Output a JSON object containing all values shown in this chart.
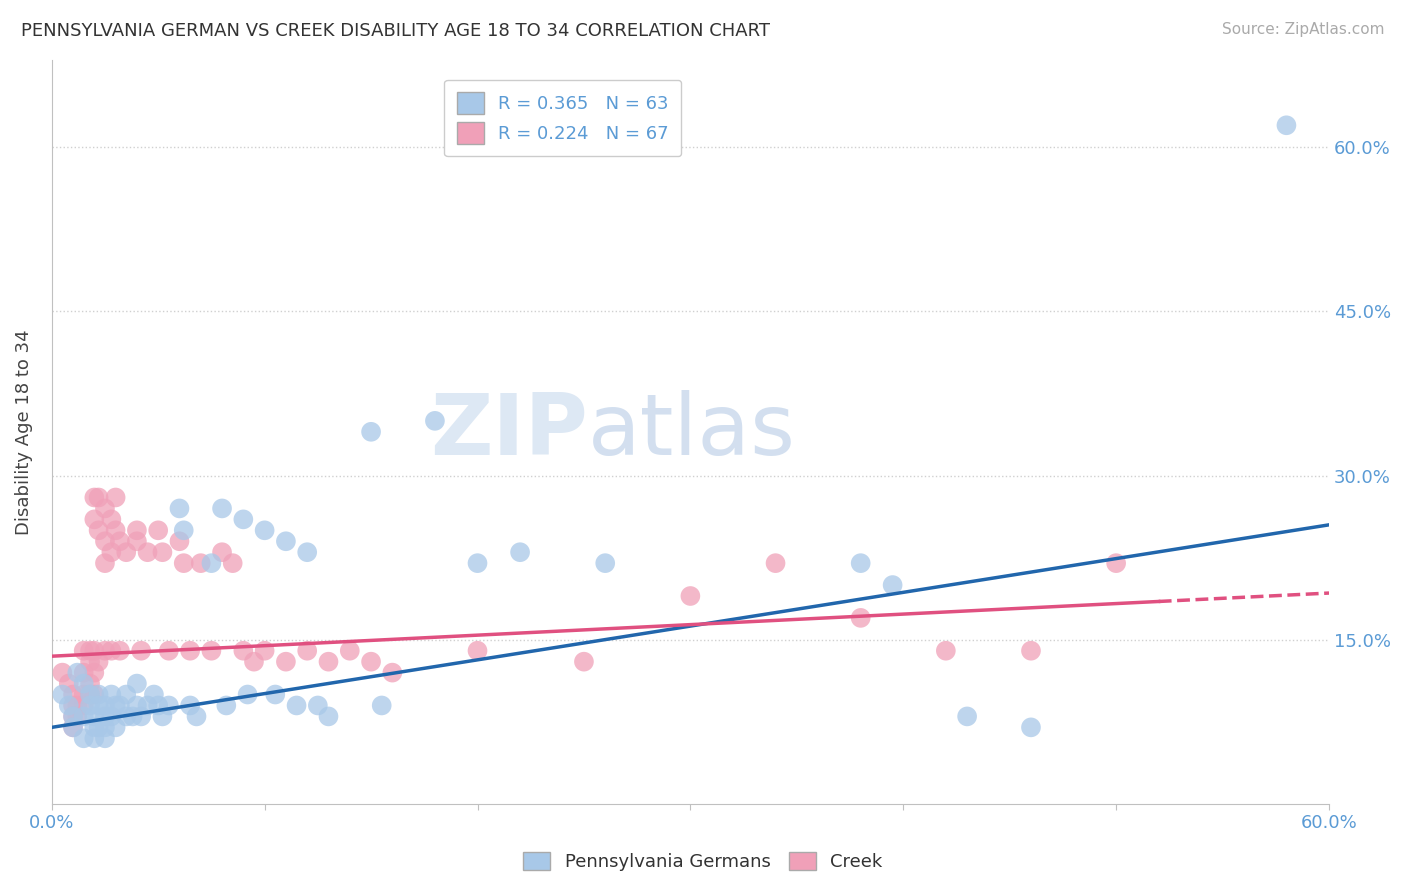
{
  "title": "PENNSYLVANIA GERMAN VS CREEK DISABILITY AGE 18 TO 34 CORRELATION CHART",
  "source": "Source: ZipAtlas.com",
  "ylabel": "Disability Age 18 to 34",
  "legend_blue_r": "R = 0.365",
  "legend_blue_n": "N = 63",
  "legend_pink_r": "R = 0.224",
  "legend_pink_n": "N = 67",
  "legend_blue_label": "Pennsylvania Germans",
  "legend_pink_label": "Creek",
  "ytick_labels": [
    "15.0%",
    "30.0%",
    "45.0%",
    "60.0%"
  ],
  "ytick_values": [
    0.15,
    0.3,
    0.45,
    0.6
  ],
  "xmin": 0.0,
  "xmax": 0.6,
  "ymin": 0.0,
  "ymax": 0.68,
  "watermark_zip": "ZIP",
  "watermark_atlas": "atlas",
  "blue_color": "#a8c8e8",
  "pink_color": "#f0a0b8",
  "trend_blue_color": "#2166ac",
  "trend_pink_color": "#e05080",
  "blue_scatter": [
    [
      0.005,
      0.1
    ],
    [
      0.008,
      0.09
    ],
    [
      0.01,
      0.08
    ],
    [
      0.01,
      0.07
    ],
    [
      0.012,
      0.12
    ],
    [
      0.015,
      0.11
    ],
    [
      0.015,
      0.08
    ],
    [
      0.015,
      0.06
    ],
    [
      0.018,
      0.1
    ],
    [
      0.018,
      0.09
    ],
    [
      0.02,
      0.08
    ],
    [
      0.02,
      0.07
    ],
    [
      0.02,
      0.06
    ],
    [
      0.022,
      0.1
    ],
    [
      0.022,
      0.09
    ],
    [
      0.022,
      0.07
    ],
    [
      0.025,
      0.09
    ],
    [
      0.025,
      0.08
    ],
    [
      0.025,
      0.07
    ],
    [
      0.025,
      0.06
    ],
    [
      0.028,
      0.1
    ],
    [
      0.028,
      0.08
    ],
    [
      0.03,
      0.09
    ],
    [
      0.03,
      0.07
    ],
    [
      0.032,
      0.09
    ],
    [
      0.035,
      0.1
    ],
    [
      0.035,
      0.08
    ],
    [
      0.038,
      0.08
    ],
    [
      0.04,
      0.11
    ],
    [
      0.04,
      0.09
    ],
    [
      0.042,
      0.08
    ],
    [
      0.045,
      0.09
    ],
    [
      0.048,
      0.1
    ],
    [
      0.05,
      0.09
    ],
    [
      0.052,
      0.08
    ],
    [
      0.055,
      0.09
    ],
    [
      0.06,
      0.27
    ],
    [
      0.062,
      0.25
    ],
    [
      0.065,
      0.09
    ],
    [
      0.068,
      0.08
    ],
    [
      0.075,
      0.22
    ],
    [
      0.08,
      0.27
    ],
    [
      0.082,
      0.09
    ],
    [
      0.09,
      0.26
    ],
    [
      0.092,
      0.1
    ],
    [
      0.1,
      0.25
    ],
    [
      0.105,
      0.1
    ],
    [
      0.11,
      0.24
    ],
    [
      0.115,
      0.09
    ],
    [
      0.12,
      0.23
    ],
    [
      0.125,
      0.09
    ],
    [
      0.13,
      0.08
    ],
    [
      0.15,
      0.34
    ],
    [
      0.155,
      0.09
    ],
    [
      0.18,
      0.35
    ],
    [
      0.2,
      0.22
    ],
    [
      0.22,
      0.23
    ],
    [
      0.26,
      0.22
    ],
    [
      0.38,
      0.22
    ],
    [
      0.395,
      0.2
    ],
    [
      0.43,
      0.08
    ],
    [
      0.46,
      0.07
    ],
    [
      0.58,
      0.62
    ]
  ],
  "pink_scatter": [
    [
      0.005,
      0.12
    ],
    [
      0.008,
      0.11
    ],
    [
      0.01,
      0.1
    ],
    [
      0.01,
      0.09
    ],
    [
      0.01,
      0.08
    ],
    [
      0.01,
      0.07
    ],
    [
      0.012,
      0.09
    ],
    [
      0.012,
      0.08
    ],
    [
      0.015,
      0.14
    ],
    [
      0.015,
      0.12
    ],
    [
      0.015,
      0.1
    ],
    [
      0.015,
      0.09
    ],
    [
      0.018,
      0.14
    ],
    [
      0.018,
      0.13
    ],
    [
      0.018,
      0.11
    ],
    [
      0.018,
      0.1
    ],
    [
      0.02,
      0.28
    ],
    [
      0.02,
      0.26
    ],
    [
      0.02,
      0.14
    ],
    [
      0.02,
      0.12
    ],
    [
      0.02,
      0.1
    ],
    [
      0.022,
      0.28
    ],
    [
      0.022,
      0.25
    ],
    [
      0.022,
      0.13
    ],
    [
      0.025,
      0.27
    ],
    [
      0.025,
      0.24
    ],
    [
      0.025,
      0.22
    ],
    [
      0.025,
      0.14
    ],
    [
      0.028,
      0.26
    ],
    [
      0.028,
      0.23
    ],
    [
      0.028,
      0.14
    ],
    [
      0.03,
      0.28
    ],
    [
      0.03,
      0.25
    ],
    [
      0.032,
      0.24
    ],
    [
      0.032,
      0.14
    ],
    [
      0.035,
      0.23
    ],
    [
      0.04,
      0.25
    ],
    [
      0.04,
      0.24
    ],
    [
      0.042,
      0.14
    ],
    [
      0.045,
      0.23
    ],
    [
      0.05,
      0.25
    ],
    [
      0.052,
      0.23
    ],
    [
      0.055,
      0.14
    ],
    [
      0.06,
      0.24
    ],
    [
      0.062,
      0.22
    ],
    [
      0.065,
      0.14
    ],
    [
      0.07,
      0.22
    ],
    [
      0.075,
      0.14
    ],
    [
      0.08,
      0.23
    ],
    [
      0.085,
      0.22
    ],
    [
      0.09,
      0.14
    ],
    [
      0.095,
      0.13
    ],
    [
      0.1,
      0.14
    ],
    [
      0.11,
      0.13
    ],
    [
      0.12,
      0.14
    ],
    [
      0.13,
      0.13
    ],
    [
      0.14,
      0.14
    ],
    [
      0.15,
      0.13
    ],
    [
      0.16,
      0.12
    ],
    [
      0.2,
      0.14
    ],
    [
      0.25,
      0.13
    ],
    [
      0.3,
      0.19
    ],
    [
      0.34,
      0.22
    ],
    [
      0.38,
      0.17
    ],
    [
      0.42,
      0.14
    ],
    [
      0.46,
      0.14
    ],
    [
      0.5,
      0.22
    ]
  ]
}
